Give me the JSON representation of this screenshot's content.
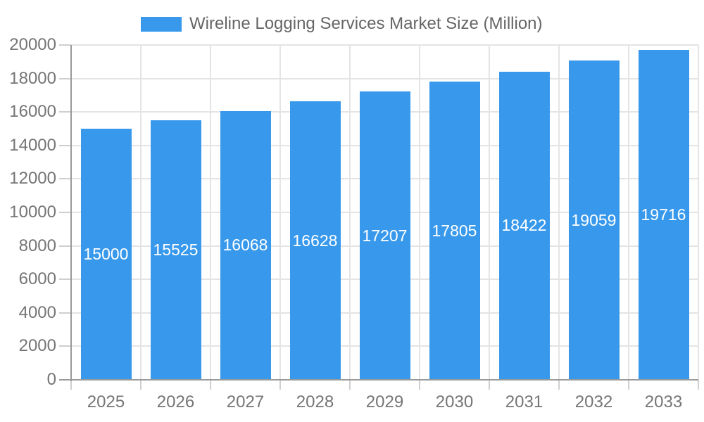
{
  "chart_data": {
    "type": "bar",
    "title": "Wireline Logging Services Market Size (Million)",
    "legend": {
      "label": "Wireline Logging Services Market Size (Million)",
      "position": "top"
    },
    "categories": [
      "2025",
      "2026",
      "2027",
      "2028",
      "2029",
      "2030",
      "2031",
      "2032",
      "2033"
    ],
    "series": [
      {
        "name": "Wireline Logging Services Market Size (Million)",
        "values": [
          15000,
          15525,
          16068,
          16628,
          17207,
          17805,
          18422,
          19059,
          19716
        ]
      }
    ],
    "value_labels": [
      "15000",
      "15525",
      "16068",
      "16628",
      "17207",
      "17805",
      "18422",
      "19059",
      "19716"
    ],
    "value_labels_position": "inside-center",
    "xlabel": "",
    "ylabel": "",
    "ylim": [
      0,
      20000
    ],
    "ytick_step": 2000,
    "ytick_labels": [
      "0",
      "2000",
      "4000",
      "6000",
      "8000",
      "10000",
      "12000",
      "14000",
      "16000",
      "18000",
      "20000"
    ],
    "grid": true,
    "colors": {
      "bar": "#3899ec",
      "grid": "#e4e4e4",
      "axis_line": "#9a9a9a",
      "tick": "#cfcfcf",
      "axis_label": "#757575",
      "value_label": "#ffffff",
      "legend_text": "#666666"
    }
  }
}
